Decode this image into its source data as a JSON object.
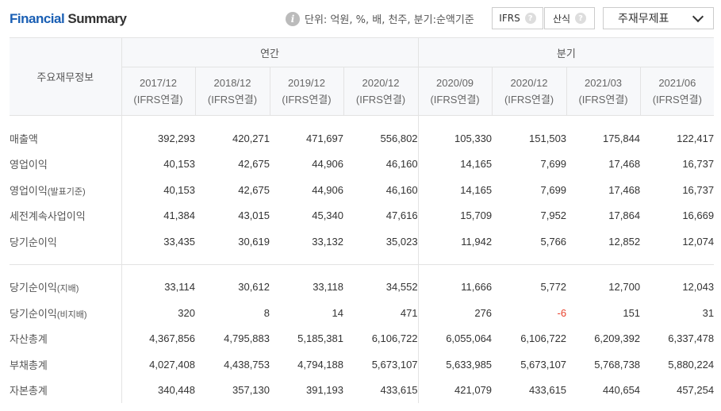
{
  "header": {
    "title_part1": "Financial",
    "title_part2": "Summary",
    "info_icon": "i",
    "unit_text": "단위: 억원, %, 배, 천주, 분기:순액기준",
    "ifrs_label": "IFRS",
    "calc_label": "산식",
    "help_glyph": "?",
    "select_value": "주재무제표"
  },
  "table": {
    "corner_label": "주요재무정보",
    "group_annual": "연간",
    "group_quarter": "분기",
    "columns": [
      {
        "period": "2017/12",
        "basis": "(IFRS연결)"
      },
      {
        "period": "2018/12",
        "basis": "(IFRS연결)"
      },
      {
        "period": "2019/12",
        "basis": "(IFRS연결)"
      },
      {
        "period": "2020/12",
        "basis": "(IFRS연결)"
      },
      {
        "period": "2020/09",
        "basis": "(IFRS연결)"
      },
      {
        "period": "2020/12",
        "basis": "(IFRS연결)"
      },
      {
        "period": "2021/03",
        "basis": "(IFRS연결)"
      },
      {
        "period": "2021/06",
        "basis": "(IFRS연결)"
      }
    ],
    "rows": [
      {
        "label": "매출액",
        "values": [
          "392,293",
          "420,271",
          "471,697",
          "556,802",
          "105,330",
          "151,503",
          "175,844",
          "122,417"
        ]
      },
      {
        "label": "영업이익",
        "values": [
          "40,153",
          "42,675",
          "44,906",
          "46,160",
          "14,165",
          "7,699",
          "17,468",
          "16,737"
        ]
      },
      {
        "label": "영업이익",
        "label_small": "(발표기준)",
        "values": [
          "40,153",
          "42,675",
          "44,906",
          "46,160",
          "14,165",
          "7,699",
          "17,468",
          "16,737"
        ]
      },
      {
        "label": "세전계속사업이익",
        "values": [
          "41,384",
          "43,015",
          "45,340",
          "47,616",
          "15,709",
          "7,952",
          "17,864",
          "16,669"
        ]
      },
      {
        "label": "당기순이익",
        "values": [
          "33,435",
          "30,619",
          "33,132",
          "35,023",
          "11,942",
          "5,766",
          "12,852",
          "12,074"
        ]
      },
      {
        "label": "당기순이익",
        "label_small": "(지배)",
        "values": [
          "33,114",
          "30,612",
          "33,118",
          "34,552",
          "11,666",
          "5,772",
          "12,700",
          "12,043"
        ]
      },
      {
        "label": "당기순이익",
        "label_small": "(비지배)",
        "values": [
          "320",
          "8",
          "14",
          "471",
          "276",
          "-6",
          "151",
          "31"
        ]
      },
      {
        "label": "자산총계",
        "values": [
          "4,367,856",
          "4,795,883",
          "5,185,381",
          "6,106,722",
          "6,055,064",
          "6,106,722",
          "6,209,392",
          "6,337,478"
        ]
      },
      {
        "label": "부채총계",
        "values": [
          "4,027,408",
          "4,438,753",
          "4,794,188",
          "5,673,107",
          "5,633,985",
          "5,673,107",
          "5,768,738",
          "5,880,224"
        ]
      },
      {
        "label": "자본총계",
        "values": [
          "340,448",
          "357,130",
          "391,193",
          "433,615",
          "421,079",
          "433,615",
          "440,654",
          "457,254"
        ]
      }
    ],
    "negative_color": "#e8412c"
  }
}
